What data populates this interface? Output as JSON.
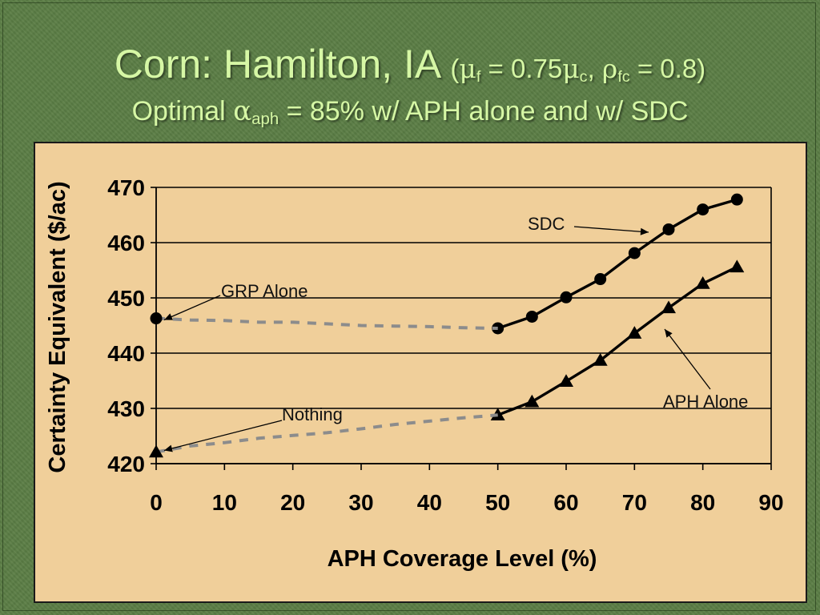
{
  "slide": {
    "title_main": "Corn: Hamilton, IA",
    "title_params": {
      "open": "(",
      "mu": "μ",
      "sub_f": "f",
      "eq1": " = 0.75",
      "sub_c": "c",
      "comma": ", ",
      "rho": "ρ",
      "sub_fc": "fc",
      "eq2": " = 0.8)"
    },
    "subtitle": {
      "pre": "Optimal ",
      "alpha": "α",
      "sub_aph": "aph",
      "post": " = 85% w/ APH alone and w/ SDC"
    }
  },
  "colors": {
    "background": "#5b7e45",
    "title_text": "#d6f7a5",
    "chart_panel": "#f0cf9a",
    "solid_series": "#000000",
    "dashed_series": "#8c8c8c"
  },
  "chart_data": {
    "type": "line",
    "xlabel": "APH Coverage Level (%)",
    "ylabel": "Certainty Equivalent ($/ac)",
    "xlim": [
      0,
      90
    ],
    "ylim": [
      420,
      470
    ],
    "xticks": [
      "0",
      "10",
      "20",
      "30",
      "40",
      "50",
      "60",
      "70",
      "80",
      "90"
    ],
    "yticks": [
      "420",
      "430",
      "440",
      "450",
      "460",
      "470"
    ],
    "grid": "horizontal",
    "series": [
      {
        "name": "SDC",
        "style": "solid",
        "marker": "circle",
        "x": [
          50,
          55,
          60,
          65,
          70,
          75,
          80,
          85
        ],
        "y": [
          444.5,
          446.6,
          450.1,
          453.4,
          458.1,
          462.4,
          466.0,
          467.8
        ]
      },
      {
        "name": "APH Alone",
        "style": "solid",
        "marker": "triangle",
        "x": [
          50,
          55,
          60,
          65,
          70,
          75,
          80,
          85
        ],
        "y": [
          428.8,
          431.2,
          434.9,
          438.7,
          443.6,
          448.2,
          452.6,
          455.6
        ]
      },
      {
        "name": "GRP Alone",
        "style": "dashed",
        "marker": "circle-at-zero",
        "x": [
          0,
          5,
          10,
          15,
          20,
          25,
          30,
          35,
          40,
          45,
          50
        ],
        "y": [
          446.3,
          446.0,
          445.9,
          445.6,
          445.6,
          445.3,
          445.0,
          444.9,
          444.8,
          444.6,
          444.5
        ]
      },
      {
        "name": "Nothing",
        "style": "dashed",
        "marker": "triangle-at-zero",
        "x": [
          0,
          5,
          10,
          15,
          20,
          25,
          30,
          35,
          40,
          45,
          50
        ],
        "y": [
          422.1,
          423.2,
          423.8,
          424.6,
          425.1,
          425.6,
          426.3,
          427.1,
          427.7,
          428.3,
          428.8
        ]
      }
    ],
    "annotations": [
      {
        "text": "SDC",
        "series": "SDC"
      },
      {
        "text": "GRP Alone",
        "series": "GRP Alone"
      },
      {
        "text": "Nothing",
        "series": "Nothing"
      },
      {
        "text": "APH Alone",
        "series": "APH Alone"
      }
    ]
  }
}
